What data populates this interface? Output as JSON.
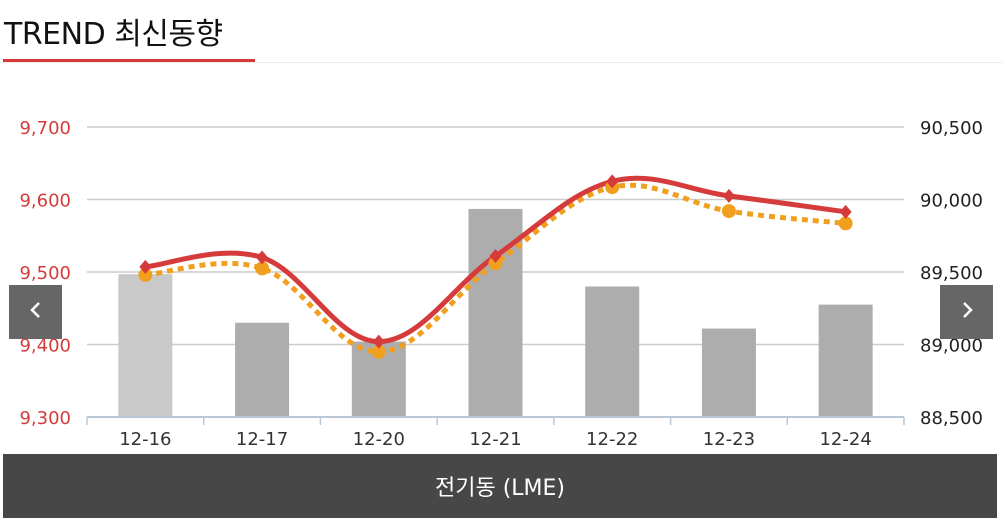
{
  "header": {
    "title": "TREND 최신동향"
  },
  "footer": {
    "label": "전기동 (LME)"
  },
  "nav": {
    "prev_icon": "chevron-left-icon",
    "next_icon": "chevron-right-icon"
  },
  "colors": {
    "line_main": "#d63b3b",
    "line_dotted": "#f0a01e",
    "bar": "#adadad",
    "bar_first": "#c9c9c9",
    "left_axis_text": "#d63b3b",
    "grid": "#cccccc",
    "axis": "#b9c7d6"
  },
  "chart_data": {
    "type": "bar+line",
    "categories": [
      "12-16",
      "12-17",
      "12-20",
      "12-21",
      "12-22",
      "12-23",
      "12-24"
    ],
    "left_axis": {
      "ylim": [
        9300,
        9700
      ],
      "ticks": [
        "9,700",
        "9,600",
        "9,500",
        "9,400",
        "9,300"
      ]
    },
    "right_axis": {
      "ylim": [
        88500,
        90500
      ],
      "ticks": [
        "90,500",
        "90,000",
        "89,500",
        "89,000",
        "88,500"
      ]
    },
    "bars": {
      "axis": "left",
      "values": [
        9497,
        9430,
        9404,
        9587,
        9480,
        9422,
        9455
      ]
    },
    "line_solid": {
      "axis": "left",
      "values": [
        9507,
        9520,
        9404,
        9522,
        9625,
        9605,
        9583
      ]
    },
    "line_dotted": {
      "axis": "left",
      "values": [
        9496,
        9505,
        9390,
        9512,
        9617,
        9584,
        9567
      ]
    },
    "grid": true
  }
}
